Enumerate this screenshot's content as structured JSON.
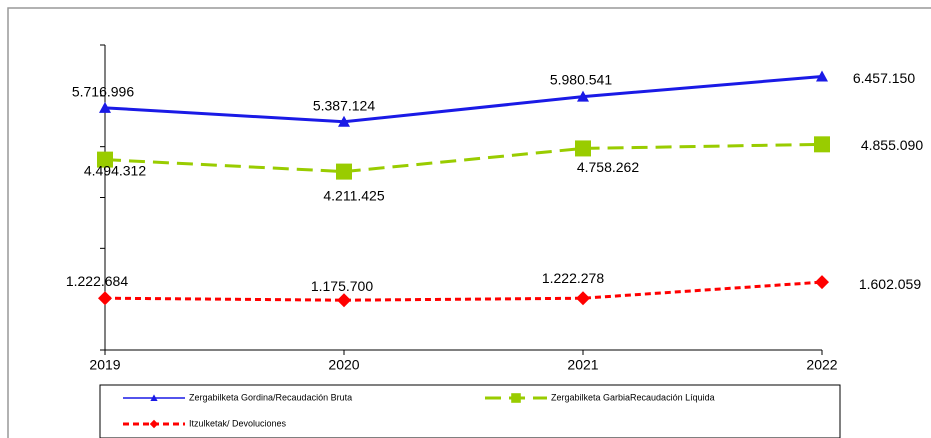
{
  "chart_data": {
    "type": "line",
    "categories": [
      "2019",
      "2020",
      "2021",
      "2022"
    ],
    "series": [
      {
        "name": "Zergabilketa Gordina/Recaudación Bruta",
        "color": "#1a1ae6",
        "marker": "triangle",
        "dash": "solid",
        "values": [
          5716996,
          5387124,
          5980541,
          6457150
        ],
        "value_labels": [
          "5.716.996",
          "5.387.124",
          "5.980.541",
          "6.457.150"
        ]
      },
      {
        "name": "Zergabilketa GarbiaRecaudación Líquida",
        "color": "#99cc00",
        "marker": "square",
        "dash": "long",
        "values": [
          4494312,
          4211425,
          4758262,
          4855090
        ],
        "value_labels": [
          "4.494.312",
          "4.211.425",
          "4.758.262",
          "4.855.090"
        ]
      },
      {
        "name": "Itzulketak/ Devoluciones",
        "color": "#ff0000",
        "marker": "diamond",
        "dash": "short",
        "values": [
          1222684,
          1175700,
          1222278,
          1602059
        ],
        "value_labels": [
          "1.222.684",
          "1.175.700",
          "1.222.278",
          "1.602.059"
        ]
      }
    ],
    "ylim": [
      0,
      7200000
    ],
    "yticks": [
      0,
      1200000,
      2400000,
      3600000,
      4800000,
      6000000,
      7200000
    ]
  }
}
